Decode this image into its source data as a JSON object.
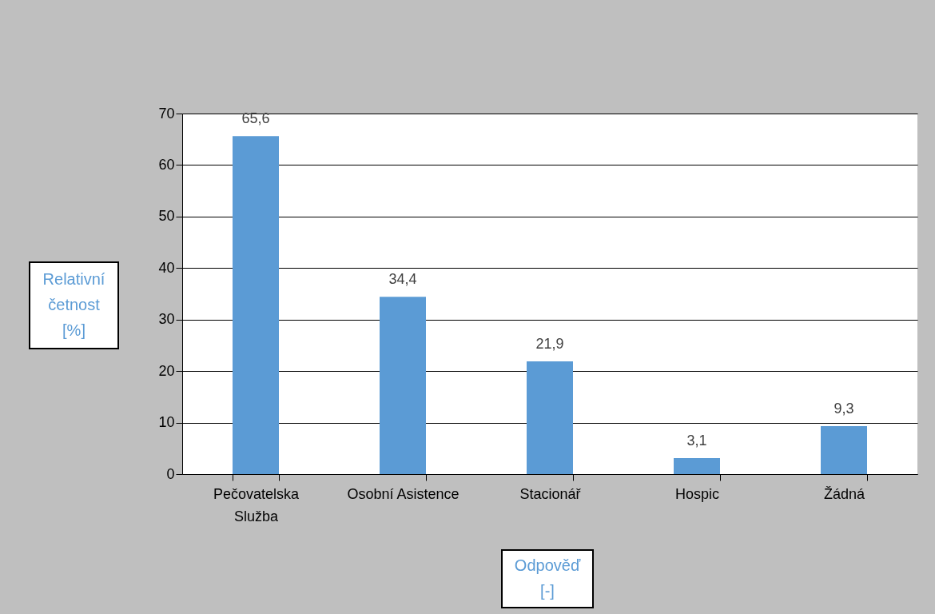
{
  "chart_data": {
    "type": "bar",
    "categories": [
      "Pečovatelska\nSlužba",
      "Osobní Asistence",
      "Stacionář",
      "Hospic",
      "Žádná"
    ],
    "values": [
      65.6,
      34.4,
      21.9,
      3.1,
      9.3
    ],
    "color": "#5b9bd5",
    "xlabel": "Odpověď [-]",
    "ylabel": "Relativní četnost [%]",
    "ylim": [
      0,
      70
    ],
    "yticks": [
      0,
      10,
      20,
      30,
      40,
      50,
      60,
      70
    ],
    "value_labels": [
      "65,6",
      "34,4",
      "21,9",
      "3,1",
      "9,3"
    ],
    "grid": "y"
  }
}
